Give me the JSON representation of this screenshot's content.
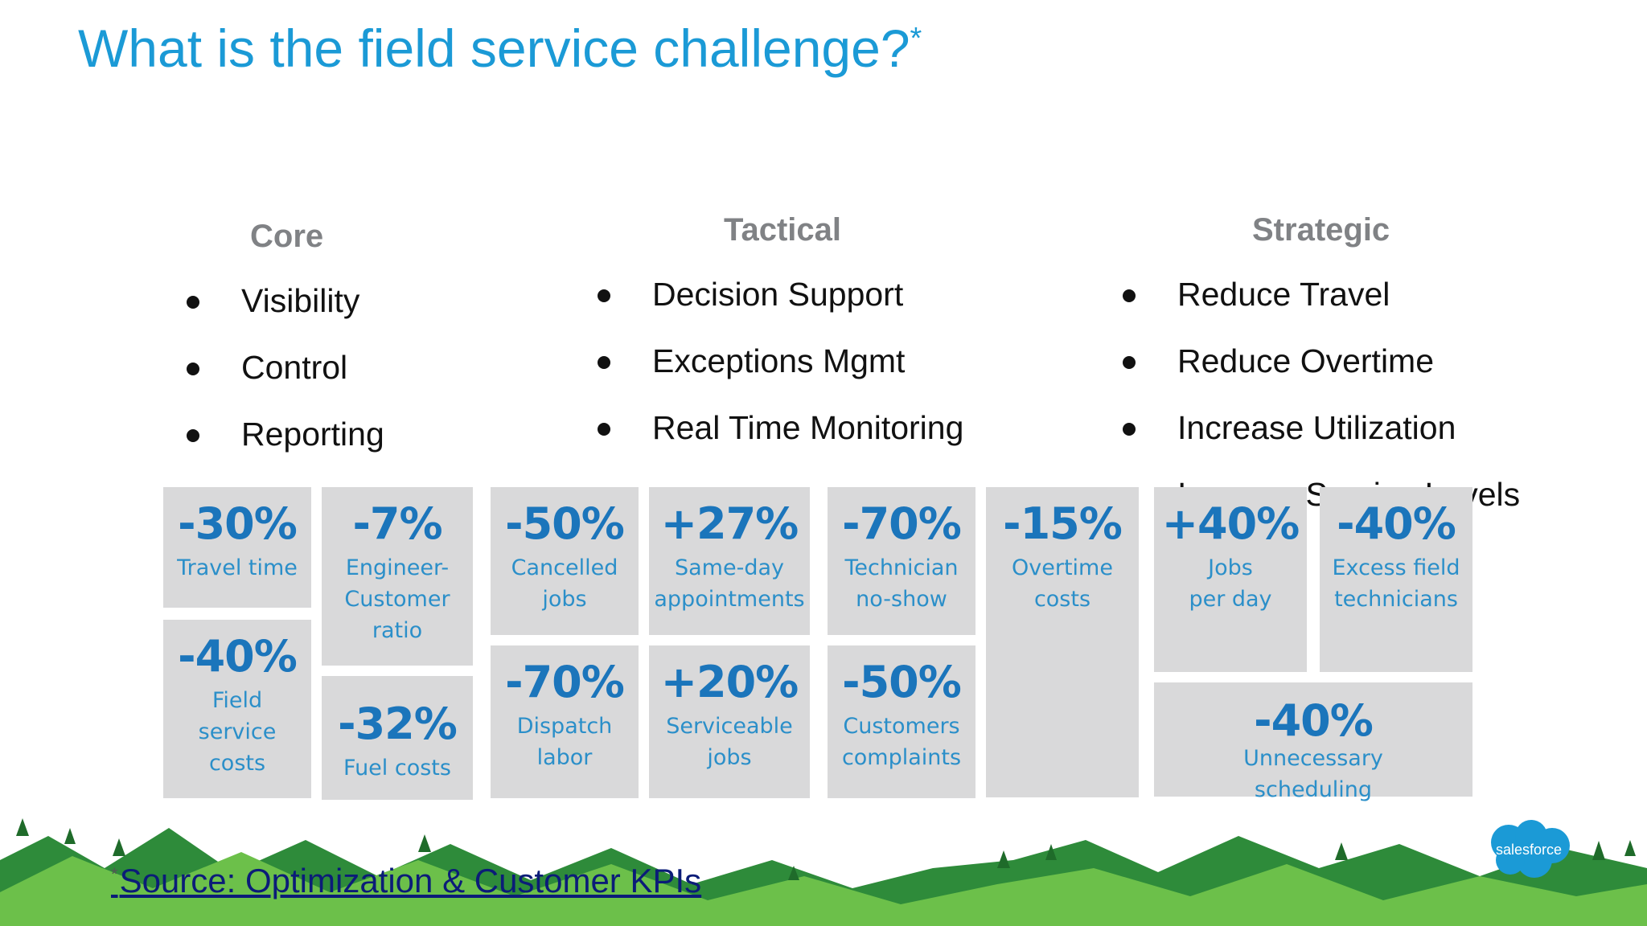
{
  "title": {
    "text": "What is the field service challenge?",
    "asterisk": "*"
  },
  "columns": [
    {
      "heading": "Core",
      "items": [
        "Visibility",
        "Control",
        "Reporting"
      ]
    },
    {
      "heading": "Tactical",
      "items": [
        "Decision Support",
        "Exceptions Mgmt",
        "Real Time Monitoring"
      ]
    },
    {
      "heading": "Strategic",
      "items": [
        "Reduce Travel",
        "Reduce Overtime",
        "Increase Utilization",
        "Improve Service Levels"
      ]
    }
  ],
  "tiles": [
    {
      "value": "-30%",
      "label": "Travel time"
    },
    {
      "value": "-40%",
      "label": "Field\nservice\ncosts"
    },
    {
      "value": "-7%",
      "label": "Engineer-\nCustomer\nratio"
    },
    {
      "value": "-32%",
      "label": "Fuel costs"
    },
    {
      "value": "-50%",
      "label": "Cancelled\njobs"
    },
    {
      "value": "-70%",
      "label": "Dispatch\nlabor"
    },
    {
      "value": "+27%",
      "label": "Same-day\nappointments"
    },
    {
      "value": "+20%",
      "label": "Serviceable\njobs"
    },
    {
      "value": "-70%",
      "label": "Technician\nno-show"
    },
    {
      "value": "-50%",
      "label": "Customers\ncomplaints"
    },
    {
      "value": "-15%",
      "label": "Overtime\ncosts"
    },
    {
      "value": "+40%",
      "label": "Jobs\nper day"
    },
    {
      "value": "-40%",
      "label": "Excess field\ntechnicians"
    },
    {
      "value": "-40%",
      "label": "Unnecessary\nscheduling"
    }
  ],
  "footer": {
    "asterisk": "*",
    "source": "Source: Optimization & Customer KPIs"
  },
  "logo": {
    "text": "salesforce",
    "color": "#1b9ad6"
  },
  "colors": {
    "title": "#1b9ad6",
    "tile_bg": "#d9d9da",
    "tile_value": "#1b75bb",
    "tile_label": "#2b8fc9",
    "hills_dark": "#2e8b3a",
    "hills_light": "#6cc04a"
  }
}
